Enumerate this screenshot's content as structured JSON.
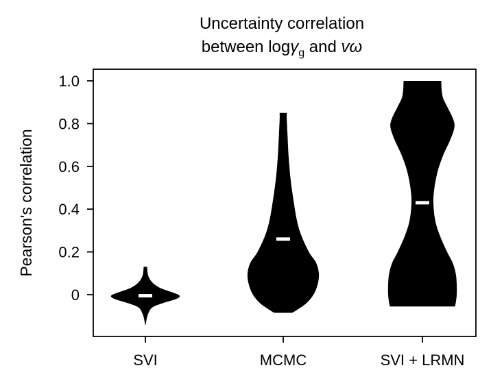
{
  "chart_data": {
    "type": "violin",
    "title": {
      "line1": "Uncertainty correlation",
      "line2_prefix": "between log",
      "gamma": "γ",
      "gamma_sub": "g",
      "line2_mid": " and ",
      "v_omega": "vω"
    },
    "ylabel": "Pearson's correlation",
    "xlabel": "",
    "ylim": [
      -0.19,
      1.05
    ],
    "yticks": [
      0,
      0.2,
      0.4,
      0.6,
      0.8,
      1.0
    ],
    "ytick_labels": [
      "0",
      "0.2",
      "0.4",
      "0.6",
      "0.8",
      "1.0"
    ],
    "categories": [
      "SVI",
      "MCMC",
      "SVI + LRMN"
    ],
    "grid": false,
    "violins": [
      {
        "category": "SVI",
        "median": -0.005,
        "min": -0.14,
        "max": 0.13,
        "profile": [
          [
            -0.14,
            0.01
          ],
          [
            -0.12,
            0.03
          ],
          [
            -0.09,
            0.08
          ],
          [
            -0.06,
            0.2
          ],
          [
            -0.04,
            0.5
          ],
          [
            -0.02,
            0.9
          ],
          [
            -0.005,
            1.0
          ],
          [
            0.01,
            0.8
          ],
          [
            0.03,
            0.45
          ],
          [
            0.05,
            0.25
          ],
          [
            0.07,
            0.14
          ],
          [
            0.09,
            0.08
          ],
          [
            0.11,
            0.06
          ],
          [
            0.13,
            0.05
          ]
        ]
      },
      {
        "category": "MCMC",
        "median": 0.26,
        "min": -0.085,
        "max": 0.85,
        "profile": [
          [
            -0.085,
            0.25
          ],
          [
            -0.07,
            0.4
          ],
          [
            -0.04,
            0.65
          ],
          [
            0.0,
            0.85
          ],
          [
            0.05,
            0.97
          ],
          [
            0.1,
            1.0
          ],
          [
            0.15,
            0.92
          ],
          [
            0.2,
            0.72
          ],
          [
            0.28,
            0.5
          ],
          [
            0.35,
            0.38
          ],
          [
            0.45,
            0.28
          ],
          [
            0.55,
            0.2
          ],
          [
            0.65,
            0.15
          ],
          [
            0.75,
            0.12
          ],
          [
            0.82,
            0.1
          ],
          [
            0.85,
            0.1
          ]
        ]
      },
      {
        "category": "SVI + LRMN",
        "median": 0.43,
        "min": -0.055,
        "max": 1.0,
        "profile": [
          [
            -0.055,
            0.95
          ],
          [
            -0.03,
            0.98
          ],
          [
            0.0,
            1.0
          ],
          [
            0.05,
            1.0
          ],
          [
            0.1,
            0.97
          ],
          [
            0.15,
            0.88
          ],
          [
            0.2,
            0.72
          ],
          [
            0.28,
            0.5
          ],
          [
            0.35,
            0.37
          ],
          [
            0.43,
            0.32
          ],
          [
            0.5,
            0.35
          ],
          [
            0.58,
            0.45
          ],
          [
            0.65,
            0.6
          ],
          [
            0.72,
            0.8
          ],
          [
            0.78,
            0.93
          ],
          [
            0.82,
            0.9
          ],
          [
            0.88,
            0.72
          ],
          [
            0.92,
            0.6
          ],
          [
            0.96,
            0.56
          ],
          [
            1.0,
            0.55
          ]
        ]
      }
    ],
    "colors": {
      "violin_fill": "#000000",
      "median_marker": "#ffffff",
      "axis": "#000000"
    }
  }
}
